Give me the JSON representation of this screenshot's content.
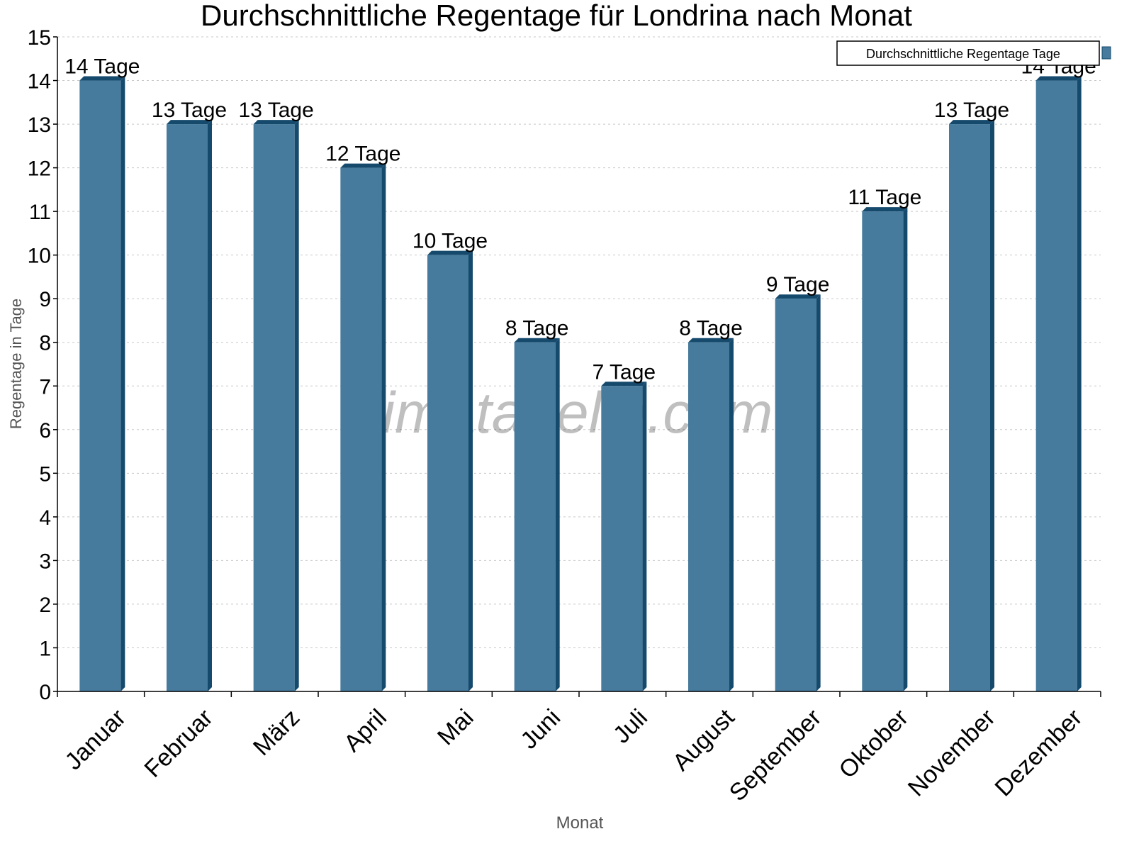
{
  "chart_data": {
    "type": "bar",
    "title": "Durchschnittliche Regentage für Londrina nach Monat",
    "xlabel": "Monat",
    "ylabel": "Regentage in Tage",
    "ylim": [
      0,
      15
    ],
    "yticks": [
      "0",
      "1",
      "2",
      "3",
      "4",
      "5",
      "6",
      "7",
      "8",
      "9",
      "10",
      "11",
      "12",
      "13",
      "14",
      "15"
    ],
    "grid": true,
    "legend_position": "top-right",
    "categories": [
      "Januar",
      "Februar",
      "März",
      "April",
      "Mai",
      "Juni",
      "Juli",
      "August",
      "September",
      "Oktober",
      "November",
      "Dezember"
    ],
    "series": [
      {
        "name": "Durchschnittliche Regentage Tage",
        "values": [
          14,
          13,
          13,
          12,
          10,
          8,
          7,
          8,
          9,
          11,
          13,
          14
        ],
        "data_labels": [
          "14 Tage",
          "13 Tage",
          "13 Tage",
          "12 Tage",
          "10 Tage",
          "8 Tage",
          "7 Tage",
          "8 Tage",
          "9 Tage",
          "11 Tage",
          "13 Tage",
          "14 Tage"
        ]
      }
    ],
    "colors": {
      "bar": "#467b9d",
      "bar_side": "#164a6d",
      "grid": "#c8c8c8"
    },
    "watermark": "klimatabelle.com"
  }
}
